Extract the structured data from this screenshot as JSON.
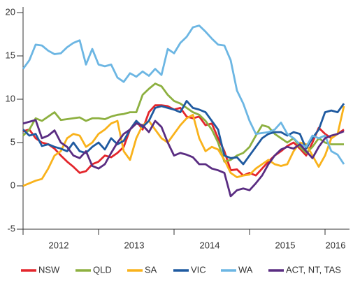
{
  "chart_data": {
    "type": "line",
    "categories": [
      null,
      null,
      null,
      null,
      null,
      null,
      "2012",
      null,
      null,
      null,
      null,
      null,
      null,
      null,
      null,
      null,
      null,
      null,
      "2013",
      null,
      null,
      null,
      null,
      null,
      null,
      null,
      null,
      null,
      null,
      null,
      "2014",
      null,
      null,
      null,
      null,
      null,
      null,
      null,
      null,
      null,
      null,
      null,
      "2015",
      null,
      null,
      null,
      null,
      null,
      null,
      null,
      "2016",
      null
    ],
    "ylim": [
      -5,
      20
    ],
    "yticks": [
      -5,
      0,
      5,
      10,
      15,
      20
    ],
    "grid": false,
    "legend": "bottom",
    "series": [
      {
        "name": "NSW",
        "color": "#e3262c",
        "values": [
          6.3,
          6.5,
          5.5,
          5.0,
          4.8,
          4.3,
          3.5,
          2.8,
          2.2,
          1.5,
          1.7,
          2.5,
          2.8,
          3.5,
          3.3,
          3.8,
          4.5,
          6.5,
          7.5,
          6.5,
          8.5,
          9.3,
          9.3,
          9.2,
          8.8,
          9.0,
          8.0,
          7.8,
          8.0,
          7.0,
          7.2,
          5.5,
          4.0,
          1.8,
          1.9,
          1.2,
          1.5,
          1.2,
          2.0,
          2.8,
          3.5,
          4.0,
          4.6,
          5.0,
          4.3,
          3.5,
          5.0,
          6.7,
          6.0,
          5.5,
          6.0,
          6.5
        ]
      },
      {
        "name": "QLD",
        "color": "#8db040",
        "values": [
          5.8,
          6.5,
          7.8,
          7.5,
          8.0,
          8.5,
          7.6,
          7.7,
          7.8,
          7.9,
          7.5,
          7.8,
          7.8,
          7.7,
          8.0,
          8.2,
          8.3,
          8.5,
          8.5,
          10.5,
          11.2,
          11.8,
          11.5,
          10.5,
          9.8,
          9.5,
          9.0,
          8.5,
          8.2,
          7.5,
          6.5,
          5.0,
          2.8,
          3.0,
          3.5,
          3.8,
          4.5,
          5.8,
          7.0,
          6.8,
          6.0,
          5.5,
          5.0,
          5.5,
          4.5,
          3.8,
          4.5,
          5.5,
          5.0,
          4.8,
          4.8,
          4.8
        ]
      },
      {
        "name": "SA",
        "color": "#f9b21b",
        "values": [
          0,
          0.3,
          0.6,
          0.8,
          2.0,
          3.5,
          4.0,
          5.5,
          6.0,
          5.8,
          4.5,
          5.0,
          6.0,
          6.5,
          7.2,
          7.5,
          4.0,
          3.0,
          5.5,
          7.0,
          7.5,
          6.5,
          5.5,
          5.0,
          6.0,
          7.0,
          7.8,
          8.2,
          5.5,
          4.0,
          4.5,
          4.2,
          3.0,
          1.5,
          1.0,
          1.2,
          1.3,
          2.0,
          2.5,
          3.0,
          2.5,
          2.3,
          2.5,
          4.0,
          5.0,
          4.8,
          3.5,
          2.2,
          3.5,
          5.5,
          6.0,
          9.2
        ]
      },
      {
        "name": "VIC",
        "color": "#1f5aa0",
        "values": [
          6.5,
          5.8,
          6.0,
          4.6,
          4.8,
          4.5,
          4.3,
          4.0,
          5.0,
          4.0,
          3.8,
          4.5,
          5.0,
          4.2,
          5.5,
          4.8,
          5.2,
          6.5,
          7.5,
          6.8,
          7.5,
          9.0,
          9.2,
          9.0,
          8.8,
          8.5,
          9.8,
          9.0,
          8.8,
          8.5,
          7.5,
          6.5,
          3.5,
          3.2,
          3.3,
          2.5,
          3.5,
          4.5,
          5.5,
          6.0,
          6.2,
          6.2,
          5.8,
          6.2,
          6.0,
          4.3,
          5.5,
          6.5,
          8.5,
          8.7,
          8.5,
          9.5
        ]
      },
      {
        "name": "WA",
        "color": "#6cb6e3",
        "values": [
          13.5,
          14.5,
          16.3,
          16.2,
          15.6,
          15.2,
          15.3,
          16.0,
          16.5,
          16.8,
          14.0,
          15.8,
          14.0,
          13.8,
          14.0,
          12.5,
          12.0,
          13.0,
          12.6,
          13.2,
          12.7,
          13.5,
          12.8,
          15.8,
          15.3,
          16.5,
          17.2,
          18.3,
          18.5,
          17.8,
          17.0,
          16.3,
          16.2,
          14.5,
          11.0,
          9.5,
          7.5,
          6.0,
          6.1,
          6.2,
          6.5,
          7.3,
          6.0,
          5.5,
          4.8,
          4.5,
          5.8,
          5.5,
          5.8,
          4.0,
          3.6,
          2.5
        ]
      },
      {
        "name": "ACT, NT, TAS",
        "color": "#5a2d82",
        "values": [
          7.2,
          7.4,
          7.6,
          5.5,
          5.8,
          6.4,
          5.0,
          4.5,
          3.5,
          3.2,
          4.0,
          2.3,
          2.0,
          2.5,
          3.8,
          5.0,
          6.0,
          6.5,
          7.2,
          7.0,
          6.2,
          7.5,
          6.8,
          5.0,
          3.5,
          3.8,
          3.6,
          3.3,
          2.5,
          2.5,
          2.0,
          1.8,
          1.5,
          -1.2,
          -0.5,
          -0.3,
          -0.5,
          0.3,
          1.2,
          2.5,
          3.5,
          4.2,
          4.5,
          4.3,
          4.8,
          4.0,
          3.2,
          4.5,
          5.5,
          5.8,
          6.0,
          6.3
        ]
      }
    ]
  }
}
